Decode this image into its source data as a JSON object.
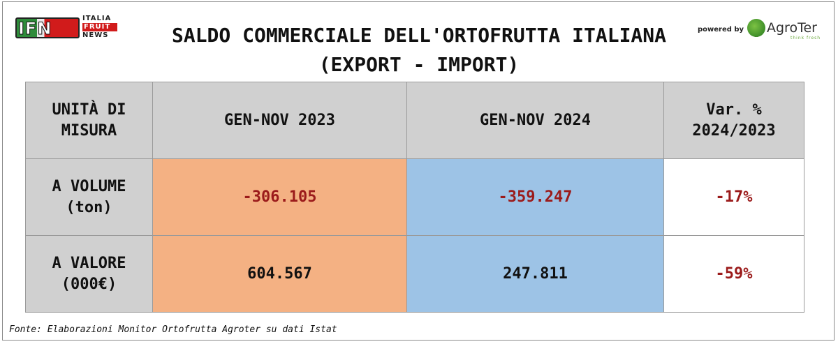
{
  "logo_left": {
    "main": "IFN",
    "line1": "ITALIA",
    "line2": "FRUIT",
    "line3": "NEWS"
  },
  "title": {
    "line1": "SALDO COMMERCIALE DELL'ORTOFRUTTA ITALIANA",
    "line2": "(EXPORT - IMPORT)"
  },
  "logo_right": {
    "powered_by": "powered by",
    "brand": "AgroTer",
    "tagline": "think fresh"
  },
  "table": {
    "headers": {
      "unit_line1": "UNITÀ DI",
      "unit_line2": "MISURA",
      "col_2023": "GEN-NOV 2023",
      "col_2024": "GEN-NOV 2024",
      "var_line1": "Var. %",
      "var_line2": "2024/2023"
    },
    "rows": [
      {
        "label_line1": "A VOLUME",
        "label_line2": "(ton)",
        "v2023": "-306.105",
        "v2024": "-359.247",
        "var": "-17%"
      },
      {
        "label_line1": "A VALORE",
        "label_line2": "(000€)",
        "v2023": "604.567",
        "v2024": "247.811",
        "var": "-59%"
      }
    ]
  },
  "colors": {
    "col_2023_fill": "#f4b183",
    "col_2024_fill": "#9dc3e6",
    "negative_text": "#9b1b1b",
    "header_fill": "#d0d0d0"
  },
  "source": "Fonte: Elaborazioni Monitor Ortofrutta Agroter su dati Istat"
}
